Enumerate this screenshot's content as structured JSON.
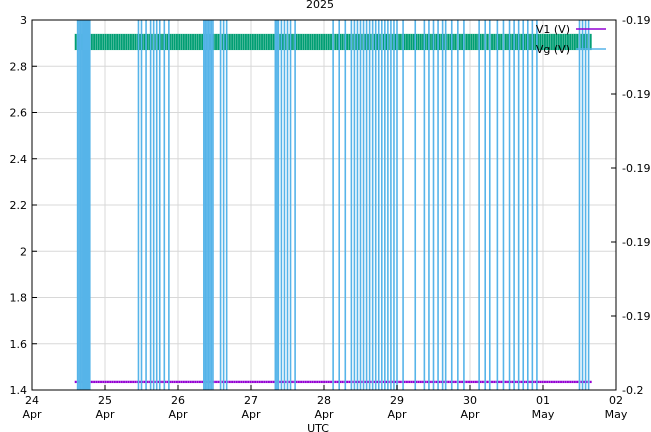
{
  "chart_data": {
    "type": "line",
    "title": "2025",
    "xlabel": "UTC",
    "ylabel": "",
    "y2label": "",
    "x_range": [
      "2025-04-24T00:00",
      "2025-05-02T00:00"
    ],
    "x_ticks": [
      {
        "t": "2025-04-24T00:00",
        "label": "24\nApr"
      },
      {
        "t": "2025-04-25T00:00",
        "label": "25\nApr"
      },
      {
        "t": "2025-04-26T00:00",
        "label": "26\nApr"
      },
      {
        "t": "2025-04-27T00:00",
        "label": "27\nApr"
      },
      {
        "t": "2025-04-28T00:00",
        "label": "28\nApr"
      },
      {
        "t": "2025-04-29T00:00",
        "label": "29\nApr"
      },
      {
        "t": "2025-04-30T00:00",
        "label": "30\nApr"
      },
      {
        "t": "2025-05-01T00:00",
        "label": "01\nMay"
      },
      {
        "t": "2025-05-02T00:00",
        "label": "02\nMay"
      }
    ],
    "ylim": [
      1.4,
      3.0
    ],
    "y_ticks": [
      1.4,
      1.6,
      1.8,
      2.0,
      2.2,
      2.4,
      2.6,
      2.8,
      3.0
    ],
    "y_tick_labels": [
      "1.4",
      "1.6",
      "1.8",
      "2",
      "2.2",
      "2.4",
      "2.6",
      "2.8",
      "3"
    ],
    "y2lim": [
      -0.2,
      -0.19
    ],
    "y2_ticks": [
      -0.2,
      -0.198,
      -0.196,
      -0.194,
      -0.192,
      -0.19
    ],
    "y2_tick_labels": [
      "-0.2",
      "-0.198",
      "-0.196",
      "-0.194",
      "-0.192",
      "-0.19"
    ],
    "grid": true,
    "legend_position": "top-right",
    "series": [
      {
        "name": "V1 (V)",
        "color": "#9400d3",
        "axis": "y1",
        "kind": "band",
        "x": [
          "2025-04-24T14:00",
          "2025-05-01T16:00"
        ],
        "values": [
          1.43,
          1.44
        ]
      },
      {
        "name": "",
        "color": "#009e73",
        "axis": "y1",
        "kind": "band",
        "x": [
          "2025-04-24T14:00",
          "2025-05-01T16:00"
        ],
        "values": [
          2.87,
          2.94
        ]
      },
      {
        "name": "Vg (V)",
        "color": "#56b4e9",
        "axis": "y2",
        "kind": "spikes",
        "low": -0.2,
        "high": -0.19,
        "x": [
          "2025-04-24T15:00",
          "2025-04-24T15:30",
          "2025-04-24T16:00",
          "2025-04-24T16:30",
          "2025-04-24T17:00",
          "2025-04-24T17:30",
          "2025-04-24T18:00",
          "2025-04-24T18:30",
          "2025-04-24T19:00",
          "2025-04-25T11:00",
          "2025-04-25T12:00",
          "2025-04-25T13:30",
          "2025-04-25T15:00",
          "2025-04-25T16:00",
          "2025-04-25T17:00",
          "2025-04-25T18:00",
          "2025-04-25T19:30",
          "2025-04-25T21:00",
          "2025-04-26T08:30",
          "2025-04-26T09:00",
          "2025-04-26T09:30",
          "2025-04-26T10:00",
          "2025-04-26T10:30",
          "2025-04-26T11:00",
          "2025-04-26T11:30",
          "2025-04-26T14:00",
          "2025-04-26T15:00",
          "2025-04-26T16:00",
          "2025-04-27T08:00",
          "2025-04-27T08:30",
          "2025-04-27T09:00",
          "2025-04-27T10:00",
          "2025-04-27T11:00",
          "2025-04-27T12:00",
          "2025-04-27T13:00",
          "2025-04-27T14:30",
          "2025-04-28T03:00",
          "2025-04-28T05:00",
          "2025-04-28T07:00",
          "2025-04-28T09:00",
          "2025-04-28T10:00",
          "2025-04-28T11:00",
          "2025-04-28T12:00",
          "2025-04-28T13:00",
          "2025-04-28T14:00",
          "2025-04-28T15:00",
          "2025-04-28T16:00",
          "2025-04-28T17:00",
          "2025-04-28T18:00",
          "2025-04-28T19:00",
          "2025-04-28T20:00",
          "2025-04-28T21:00",
          "2025-04-28T22:00",
          "2025-04-28T23:00",
          "2025-04-29T00:00",
          "2025-04-29T02:00",
          "2025-04-29T06:00",
          "2025-04-29T09:00",
          "2025-04-29T10:30",
          "2025-04-29T12:00",
          "2025-04-29T13:30",
          "2025-04-29T15:00",
          "2025-04-29T16:00",
          "2025-04-29T18:00",
          "2025-04-29T20:00",
          "2025-04-29T22:00",
          "2025-04-30T03:00",
          "2025-04-30T05:00",
          "2025-04-30T06:30",
          "2025-04-30T09:00",
          "2025-04-30T11:00",
          "2025-04-30T13:00",
          "2025-04-30T14:30",
          "2025-04-30T16:00",
          "2025-04-30T17:30",
          "2025-04-30T19:00",
          "2025-04-30T20:30",
          "2025-04-30T22:00",
          "2025-05-01T12:00",
          "2025-05-01T13:00",
          "2025-05-01T14:00",
          "2025-05-01T15:00"
        ]
      }
    ]
  }
}
